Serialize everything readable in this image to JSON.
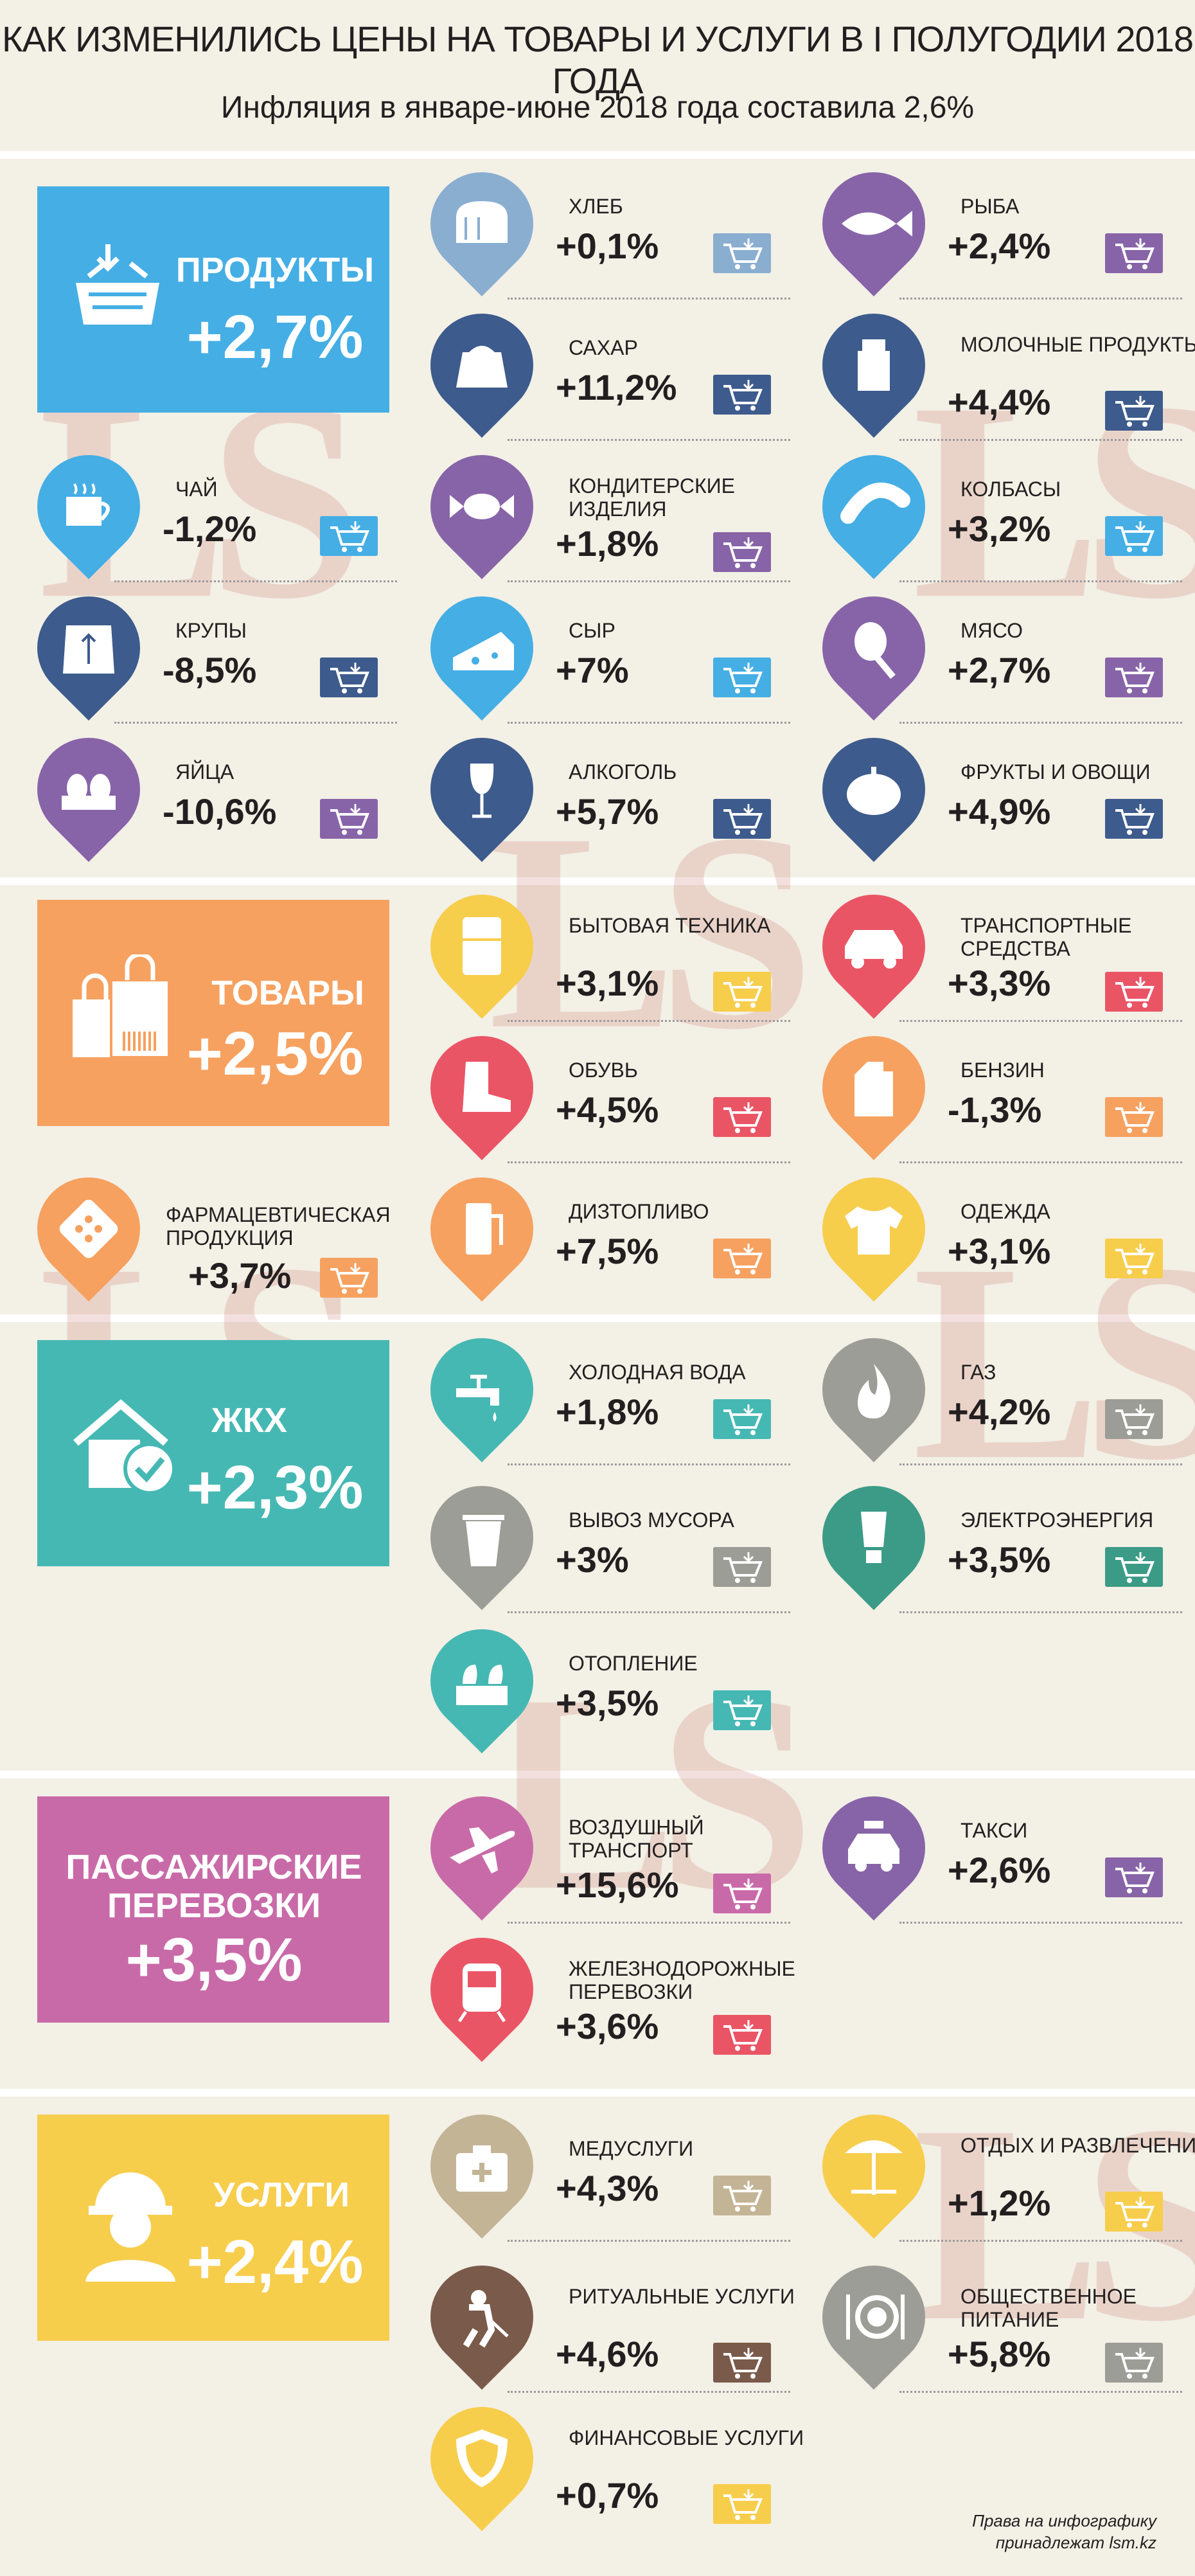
{
  "header": {
    "title": "КАК ИЗМЕНИЛИСЬ ЦЕНЫ НА ТОВАРЫ И УСЛУГИ В I ПОЛУГОДИИ 2018 ГОДА",
    "subtitle": "Инфляция в январе-июне 2018 года составила 2,6%"
  },
  "watermark": "LS",
  "colors": {
    "background": "#f3f0e6",
    "blue": "#45aee4",
    "navy": "#3d5b8c",
    "purple": "#8764a8",
    "yellow": "#f7cd4c",
    "orange": "#f6a160",
    "red": "#ea5566",
    "teal": "#46b8b3",
    "tealdark": "#3c9b86",
    "gray": "#9c9d96",
    "magenta": "#c96aa8",
    "taupe": "#c4b496",
    "brown": "#7a5a4a"
  },
  "categories": [
    {
      "name": "ПРОДУКТЫ",
      "value": "+2,7%",
      "icon": "basket-icon",
      "color": "#45aee4"
    },
    {
      "name": "ТОВАРЫ",
      "value": "+2,5%",
      "icon": "shopping-bags-icon",
      "color": "#f6a160"
    },
    {
      "name": "ЖКХ",
      "value": "+2,3%",
      "icon": "house-check-icon",
      "color": "#46b8b3"
    },
    {
      "name": "ПАССАЖИРСКИЕ ПЕРЕВОЗКИ",
      "value": "+3,5%",
      "icon": "",
      "color": "#c96aa8"
    },
    {
      "name": "УСЛУГИ",
      "value": "+2,4%",
      "icon": "worker-icon",
      "color": "#f7cd4c"
    }
  ],
  "items": {
    "bread": {
      "label": "ХЛЕБ",
      "value": "+0,1%",
      "icon": "bread-icon",
      "color": "#8aaed0"
    },
    "fish": {
      "label": "РЫБА",
      "value": "+2,4%",
      "icon": "fish-icon",
      "color": "#8764a8"
    },
    "sugar": {
      "label": "САХАР",
      "value": "+11,2%",
      "icon": "sugar-bag-icon",
      "color": "#3d5b8c"
    },
    "dairy": {
      "label": "МОЛОЧНЫЕ ПРОДУКТЫ",
      "value": "+4,4%",
      "icon": "milk-can-icon",
      "color": "#3d5b8c"
    },
    "tea": {
      "label": "ЧАЙ",
      "value": "-1,2%",
      "icon": "tea-cup-icon",
      "color": "#45aee4"
    },
    "sweets": {
      "label": "КОНДИТЕРСКИЕ ИЗДЕЛИЯ",
      "value": "+1,8%",
      "icon": "candy-icon",
      "color": "#8764a8"
    },
    "sausage": {
      "label": "КОЛБАСЫ",
      "value": "+3,2%",
      "icon": "sausage-icon",
      "color": "#45aee4"
    },
    "groats": {
      "label": "КРУПЫ",
      "value": "-8,5%",
      "icon": "grain-sack-icon",
      "color": "#3d5b8c"
    },
    "cheese": {
      "label": "СЫР",
      "value": "+7%",
      "icon": "cheese-icon",
      "color": "#45aee4"
    },
    "meat": {
      "label": "МЯСО",
      "value": "+2,7%",
      "icon": "meat-leg-icon",
      "color": "#8764a8"
    },
    "eggs": {
      "label": "ЯЙЦА",
      "value": "-10,6%",
      "icon": "eggs-icon",
      "color": "#8764a8"
    },
    "alcohol": {
      "label": "АЛКОГОЛЬ",
      "value": "+5,7%",
      "icon": "wine-glass-icon",
      "color": "#3d5b8c"
    },
    "fruits": {
      "label": "ФРУКТЫ И ОВОЩИ",
      "value": "+4,9%",
      "icon": "pumpkin-icon",
      "color": "#3d5b8c"
    },
    "appliances": {
      "label": "БЫТОВАЯ ТЕХНИКА",
      "value": "+3,1%",
      "icon": "fridge-icon",
      "color": "#f7cd4c"
    },
    "vehicles": {
      "label": "ТРАНСПОРТНЫЕ СРЕДСТВА",
      "value": "+3,3%",
      "icon": "car-icon",
      "color": "#ea5566"
    },
    "shoes": {
      "label": "ОБУВЬ",
      "value": "+4,5%",
      "icon": "boot-icon",
      "color": "#ea5566"
    },
    "petrol": {
      "label": "БЕНЗИН",
      "value": "-1,3%",
      "icon": "fuel-canister-icon",
      "color": "#f6a160"
    },
    "pharma": {
      "label": "ФАРМАЦЕВТИЧЕСКАЯ ПРОДУКЦИЯ",
      "value": "+3,7%",
      "icon": "pills-icon",
      "color": "#f6a160"
    },
    "diesel": {
      "label": "ДИЗТОПЛИВО",
      "value": "+7,5%",
      "icon": "fuel-pump-icon",
      "color": "#f6a160"
    },
    "clothes": {
      "label": "ОДЕЖДА",
      "value": "+3,1%",
      "icon": "tshirt-icon",
      "color": "#f7cd4c"
    },
    "coldwater": {
      "label": "ХОЛОДНАЯ ВОДА",
      "value": "+1,8%",
      "icon": "water-tap-icon",
      "color": "#46b8b3"
    },
    "gas": {
      "label": "ГАЗ",
      "value": "+4,2%",
      "icon": "flame-icon",
      "color": "#9c9d96"
    },
    "garbage": {
      "label": "ВЫВОЗ МУСОРА",
      "value": "+3%",
      "icon": "trash-bin-icon",
      "color": "#9c9d96"
    },
    "electricity": {
      "label": "ЭЛЕКТРОЭНЕРГИЯ",
      "value": "+3,5%",
      "icon": "lightbulb-icon",
      "color": "#3c9b86"
    },
    "heating": {
      "label": "ОТОПЛЕНИЕ",
      "value": "+3,5%",
      "icon": "radiator-icon",
      "color": "#46b8b3"
    },
    "air": {
      "label": "ВОЗДУШНЫЙ ТРАНСПОРТ",
      "value": "+15,6%",
      "icon": "airplane-icon",
      "color": "#c96aa8"
    },
    "taxi": {
      "label": "ТАКСИ",
      "value": "+2,6%",
      "icon": "taxi-icon",
      "color": "#8764a8"
    },
    "rail": {
      "label": "ЖЕЛЕЗНОДОРОЖНЫЕ ПЕРЕВОЗКИ",
      "value": "+3,6%",
      "icon": "train-icon",
      "color": "#ea5566"
    },
    "medical": {
      "label": "МЕДУСЛУГИ",
      "value": "+4,3%",
      "icon": "medkit-icon",
      "color": "#c4b496"
    },
    "leisure": {
      "label": "ОТДЫХ И РАЗВЛЕЧЕНИЯ",
      "value": "+1,2%",
      "icon": "beach-icon",
      "color": "#f7cd4c"
    },
    "funeral": {
      "label": "РИТУАЛЬНЫЕ УСЛУГИ",
      "value": "+4,6%",
      "icon": "digger-icon",
      "color": "#7a5a4a"
    },
    "catering": {
      "label": "ОБЩЕСТВЕННОЕ ПИТАНИЕ",
      "value": "+5,8%",
      "icon": "plate-cutlery-icon",
      "color": "#9c9d96"
    },
    "finance": {
      "label": "ФИНАНСОВЫЕ УСЛУГИ",
      "value": "+0,7%",
      "icon": "shield-icon",
      "color": "#f7cd4c"
    }
  },
  "credit": {
    "line1": "Права на инфографику",
    "line2": "принадлежат lsm.kz"
  }
}
